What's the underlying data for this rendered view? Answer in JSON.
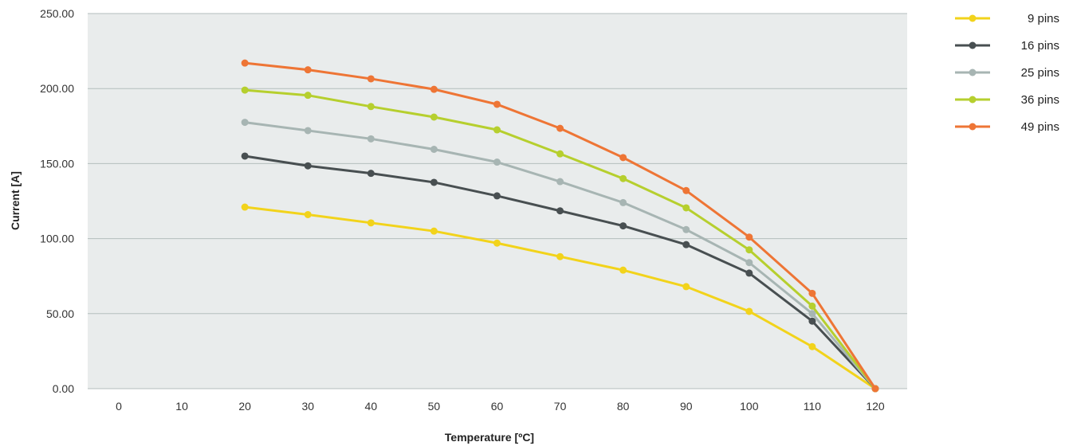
{
  "chart_data": {
    "type": "line",
    "title": "",
    "xlabel": "Temperature [ºC]",
    "ylabel": "Current [A]",
    "x": [
      0,
      10,
      20,
      30,
      40,
      50,
      60,
      70,
      80,
      90,
      100,
      110,
      120
    ],
    "x_tick_labels": [
      "0",
      "10",
      "20",
      "30",
      "40",
      "50",
      "60",
      "70",
      "80",
      "90",
      "100",
      "110",
      "120"
    ],
    "y_ticks": [
      0,
      50,
      100,
      150,
      200,
      250
    ],
    "y_tick_labels": [
      "0.00",
      "50.00",
      "100.00",
      "150.00",
      "200.00",
      "250.00"
    ],
    "ylim": [
      0,
      250
    ],
    "grid": "horizontal",
    "legend_position": "top-right",
    "series": [
      {
        "name": "9 pins",
        "color": "#F2D31B",
        "x": [
          20,
          30,
          40,
          50,
          60,
          70,
          80,
          90,
          100,
          110,
          120
        ],
        "values": [
          121,
          116,
          110.5,
          105,
          97,
          88,
          79,
          68,
          51.5,
          28,
          0
        ]
      },
      {
        "name": "16 pins",
        "color": "#484F51",
        "x": [
          20,
          30,
          40,
          50,
          60,
          70,
          80,
          90,
          100,
          110,
          120
        ],
        "values": [
          155,
          148.5,
          143.5,
          137.5,
          128.5,
          118.5,
          108.5,
          96,
          77,
          45,
          0
        ]
      },
      {
        "name": "25 pins",
        "color": "#A7B5B3",
        "x": [
          20,
          30,
          40,
          50,
          60,
          70,
          80,
          90,
          100,
          110,
          120
        ],
        "values": [
          177.5,
          172,
          166.5,
          159.5,
          151,
          138,
          124,
          106,
          84,
          50,
          0
        ]
      },
      {
        "name": "36 pins",
        "color": "#B6CF2E",
        "x": [
          20,
          30,
          40,
          50,
          60,
          70,
          80,
          90,
          100,
          110,
          120
        ],
        "values": [
          199,
          195.5,
          188,
          181,
          172.5,
          156.5,
          140,
          120.5,
          92.5,
          55,
          0
        ]
      },
      {
        "name": "49 pins",
        "color": "#EE7535",
        "x": [
          20,
          30,
          40,
          50,
          60,
          70,
          80,
          90,
          100,
          110,
          120
        ],
        "values": [
          217,
          212.5,
          206.5,
          199.5,
          189.5,
          173.5,
          154,
          132,
          101,
          63.5,
          0
        ]
      }
    ]
  },
  "colors": {
    "plot_background": "#E9ECEC",
    "grid_line": "#B4BEBD",
    "tick_text": "#333333"
  }
}
